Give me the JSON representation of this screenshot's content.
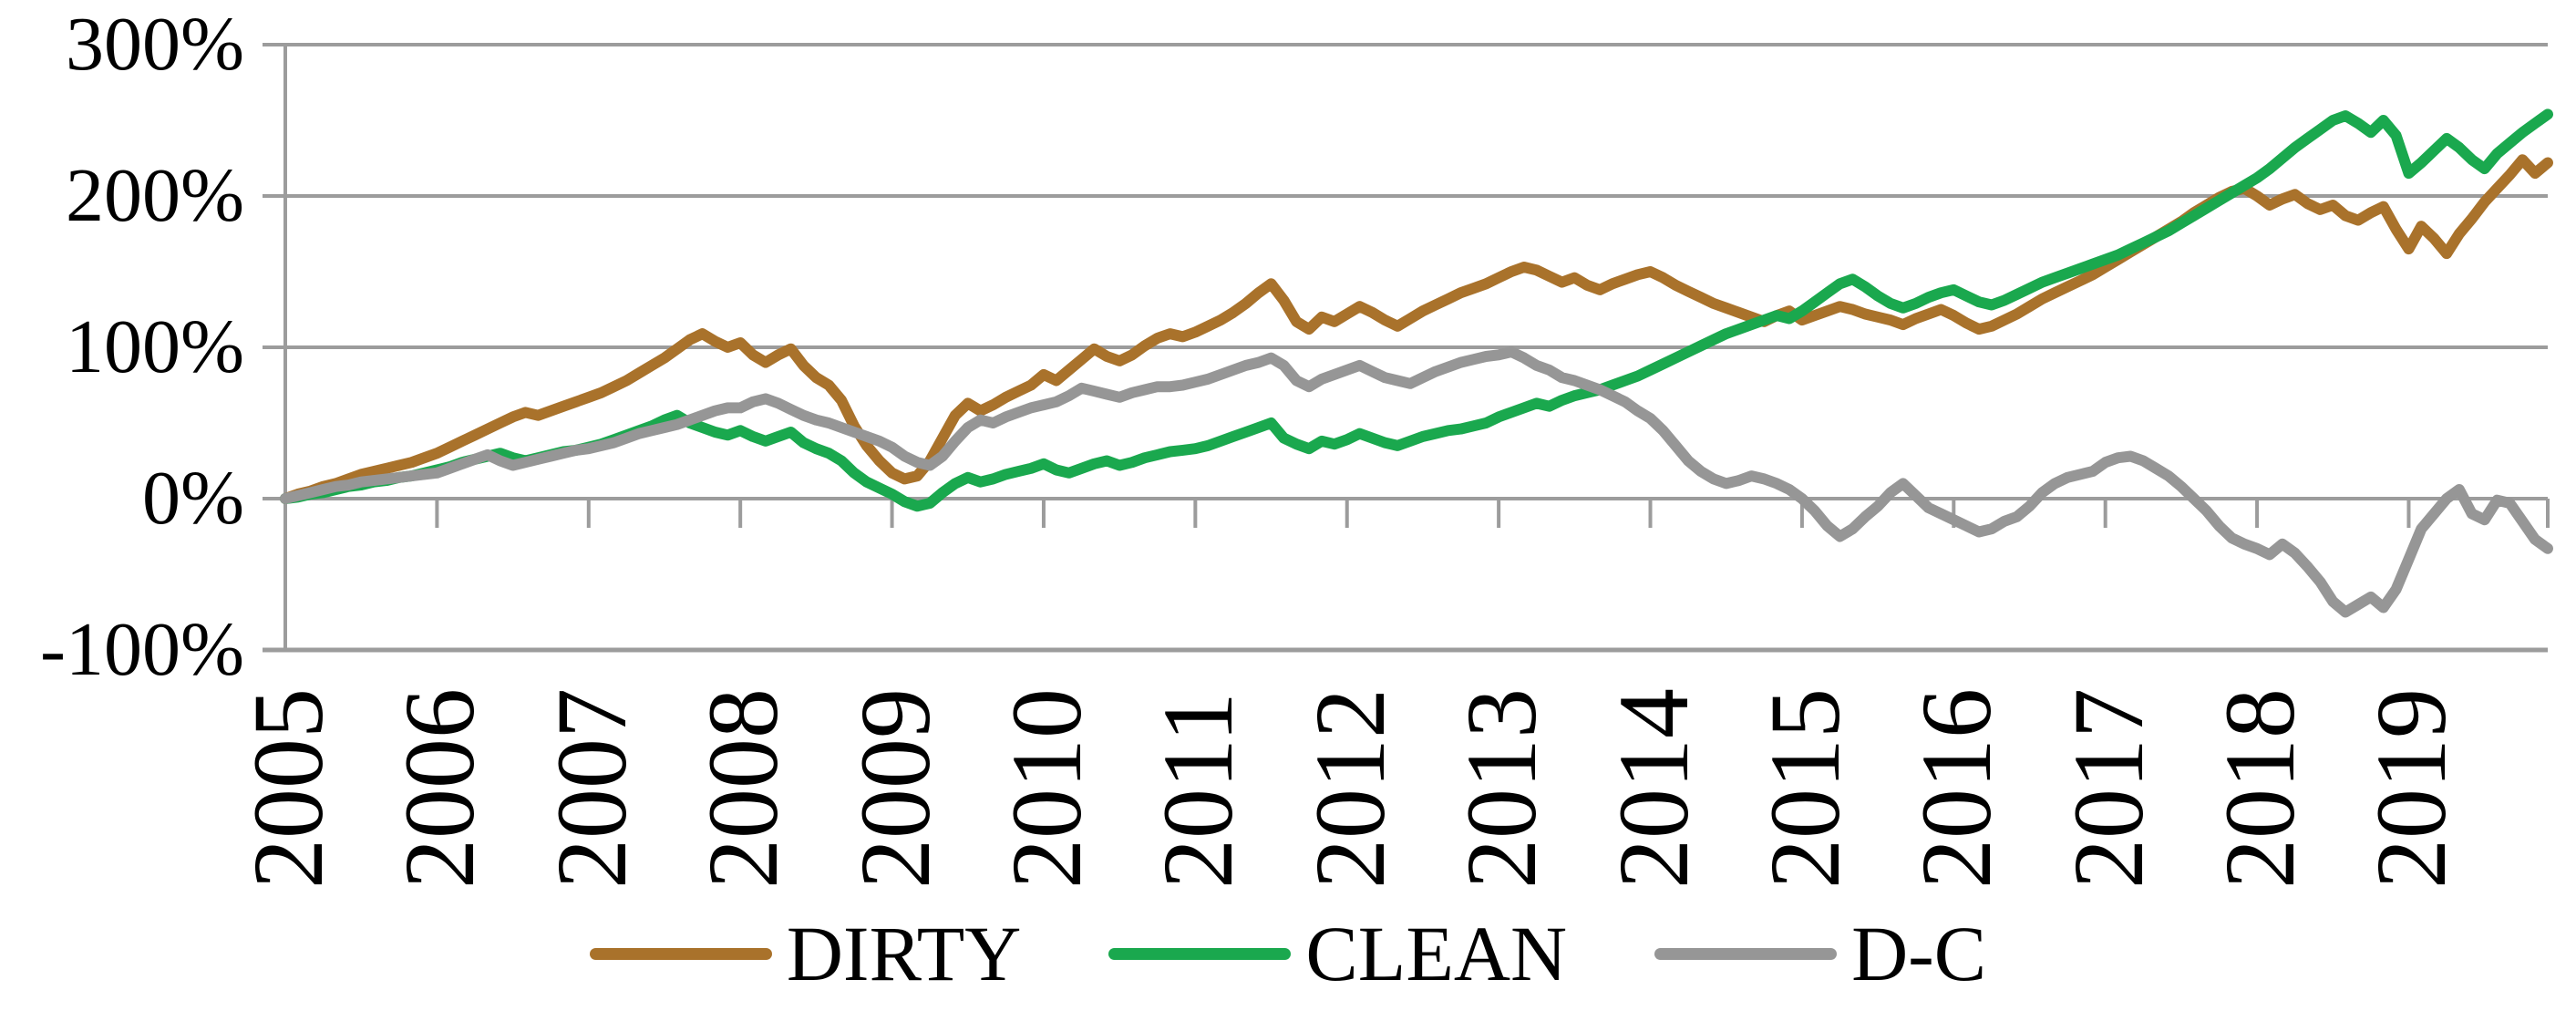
{
  "chart_data": {
    "type": "line",
    "title": "",
    "xlabel": "",
    "ylabel": "",
    "ylim": [
      -100,
      300
    ],
    "grid": true,
    "legend_position": "bottom",
    "axis_color": "#9C9C9C",
    "label_color": "#000000",
    "y_ticks": [
      {
        "label": "300%",
        "value": 300
      },
      {
        "label": "200%",
        "value": 200
      },
      {
        "label": "100%",
        "value": 100
      },
      {
        "label": "0%",
        "value": 0
      },
      {
        "label": "-100%",
        "value": -100
      }
    ],
    "x_ticks": [
      "2005",
      "2006",
      "2007",
      "2008",
      "2009",
      "2010",
      "2011",
      "2012",
      "2013",
      "2014",
      "2015",
      "2016",
      "2017",
      "2018",
      "2019"
    ],
    "x_points_per_year": 12,
    "series": [
      {
        "name": "DIRTY",
        "color": "#A9722B",
        "values": [
          0,
          3,
          5,
          8,
          10,
          13,
          16,
          18,
          20,
          22,
          24,
          27,
          30,
          34,
          38,
          42,
          46,
          50,
          54,
          57,
          55,
          58,
          61,
          64,
          67,
          70,
          74,
          78,
          83,
          88,
          93,
          99,
          105,
          109,
          104,
          100,
          103,
          95,
          90,
          95,
          99,
          88,
          80,
          75,
          65,
          48,
          35,
          25,
          17,
          13,
          15,
          25,
          40,
          55,
          63,
          58,
          62,
          67,
          71,
          75,
          82,
          78,
          85,
          92,
          99,
          94,
          91,
          95,
          101,
          106,
          109,
          107,
          110,
          114,
          118,
          123,
          129,
          136,
          142,
          131,
          117,
          112,
          120,
          117,
          122,
          127,
          123,
          118,
          114,
          119,
          124,
          128,
          132,
          136,
          139,
          142,
          146,
          150,
          153,
          151,
          147,
          143,
          146,
          141,
          138,
          142,
          145,
          148,
          150,
          146,
          141,
          137,
          133,
          129,
          126,
          123,
          120,
          117,
          121,
          124,
          118,
          121,
          124,
          127,
          125,
          122,
          120,
          118,
          115,
          119,
          122,
          125,
          121,
          116,
          112,
          114,
          118,
          122,
          127,
          132,
          136,
          140,
          144,
          148,
          153,
          158,
          163,
          168,
          173,
          178,
          183,
          189,
          194,
          199,
          203,
          205,
          200,
          194,
          198,
          201,
          195,
          191,
          194,
          187,
          184,
          189,
          193,
          178,
          165,
          180,
          172,
          162,
          175,
          185,
          196,
          205,
          214,
          224,
          215,
          222
        ]
      },
      {
        "name": "CLEAN",
        "color": "#1AA84E",
        "values": [
          0,
          1,
          3,
          4,
          6,
          8,
          9,
          11,
          12,
          14,
          15,
          17,
          19,
          21,
          24,
          26,
          28,
          30,
          27,
          25,
          27,
          29,
          31,
          32,
          34,
          36,
          39,
          42,
          45,
          48,
          52,
          55,
          50,
          47,
          44,
          42,
          45,
          41,
          38,
          41,
          44,
          37,
          33,
          30,
          25,
          17,
          11,
          7,
          3,
          -2,
          -5,
          -3,
          4,
          10,
          14,
          11,
          13,
          16,
          18,
          20,
          23,
          19,
          17,
          20,
          23,
          25,
          22,
          24,
          27,
          29,
          31,
          32,
          33,
          35,
          38,
          41,
          44,
          47,
          50,
          40,
          36,
          33,
          38,
          36,
          39,
          43,
          40,
          37,
          35,
          38,
          41,
          43,
          45,
          46,
          48,
          50,
          54,
          57,
          60,
          63,
          61,
          65,
          68,
          70,
          72,
          75,
          78,
          81,
          85,
          89,
          93,
          97,
          101,
          105,
          109,
          112,
          115,
          118,
          121,
          119,
          124,
          130,
          136,
          142,
          145,
          140,
          134,
          129,
          126,
          129,
          133,
          136,
          138,
          134,
          130,
          128,
          131,
          135,
          139,
          143,
          146,
          149,
          152,
          155,
          158,
          161,
          165,
          169,
          173,
          177,
          182,
          187,
          192,
          197,
          202,
          207,
          212,
          218,
          225,
          232,
          238,
          244,
          250,
          253,
          248,
          242,
          250,
          240,
          215,
          222,
          230,
          238,
          232,
          224,
          218,
          228,
          235,
          242,
          248,
          254
        ]
      },
      {
        "name": "D-C",
        "color": "#969696",
        "values": [
          0,
          2,
          4,
          6,
          8,
          9,
          11,
          12,
          13,
          14,
          15,
          16,
          17,
          20,
          23,
          26,
          29,
          25,
          22,
          24,
          26,
          28,
          30,
          32,
          33,
          35,
          37,
          40,
          43,
          45,
          47,
          49,
          52,
          55,
          58,
          60,
          60,
          64,
          66,
          63,
          59,
          55,
          52,
          50,
          47,
          44,
          41,
          38,
          34,
          28,
          24,
          22,
          28,
          38,
          47,
          52,
          50,
          54,
          57,
          60,
          62,
          64,
          68,
          73,
          71,
          69,
          67,
          70,
          72,
          74,
          74,
          75,
          77,
          79,
          82,
          85,
          88,
          90,
          93,
          88,
          78,
          74,
          79,
          82,
          85,
          88,
          84,
          80,
          78,
          76,
          80,
          84,
          87,
          90,
          92,
          94,
          95,
          97,
          93,
          88,
          85,
          80,
          78,
          75,
          72,
          68,
          64,
          58,
          53,
          45,
          35,
          25,
          18,
          13,
          10,
          12,
          15,
          13,
          10,
          6,
          0,
          -8,
          -18,
          -25,
          -20,
          -12,
          -5,
          4,
          10,
          2,
          -6,
          -10,
          -14,
          -18,
          -22,
          -20,
          -15,
          -12,
          -5,
          4,
          10,
          14,
          16,
          18,
          24,
          27,
          28,
          25,
          20,
          15,
          8,
          0,
          -8,
          -18,
          -26,
          -30,
          -33,
          -37,
          -30,
          -36,
          -45,
          -55,
          -68,
          -75,
          -70,
          -65,
          -72,
          -60,
          -40,
          -20,
          -10,
          0,
          6,
          -10,
          -14,
          -1,
          -3,
          -15,
          -27,
          -33
        ]
      }
    ]
  },
  "legend": {
    "dirty_label": "DIRTY",
    "clean_label": "CLEAN",
    "dc_label": "D-C"
  }
}
